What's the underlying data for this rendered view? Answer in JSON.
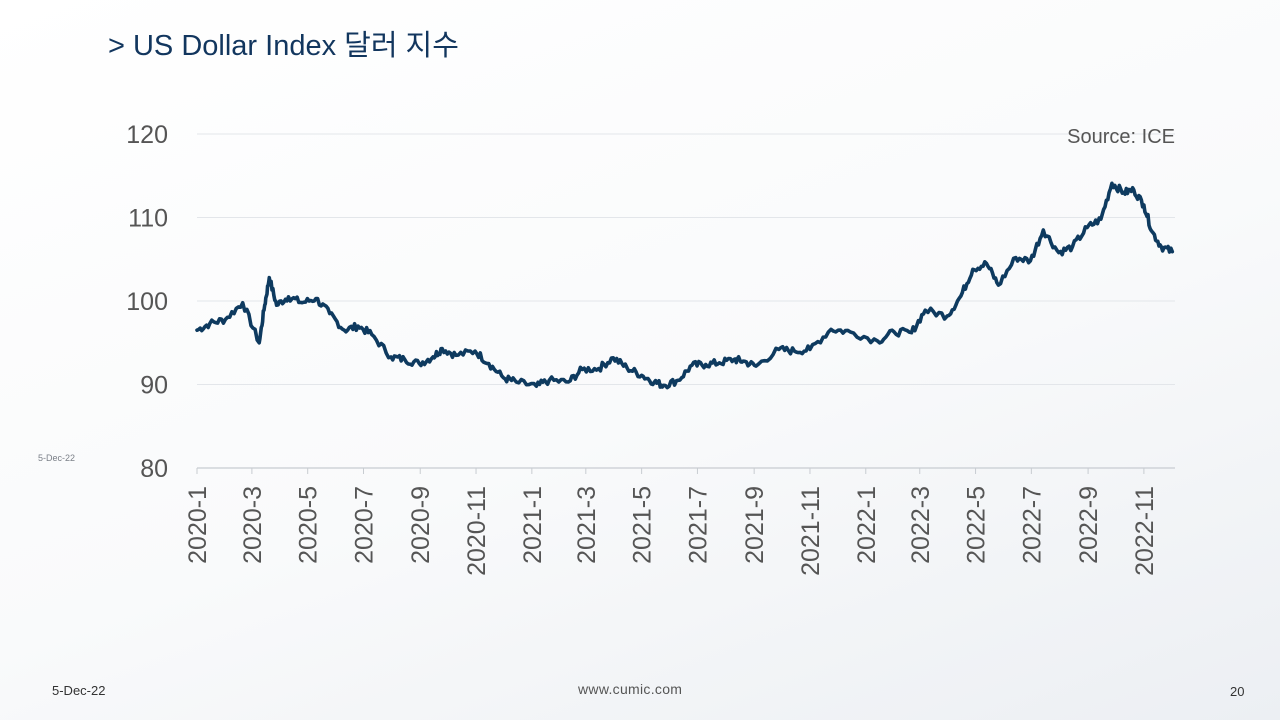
{
  "slide": {
    "title": "> US Dollar Index 달러 지수",
    "side_date": "5-Dec-22",
    "footer": {
      "date": "5-Dec-22",
      "url": "www.cumic.com",
      "page": "20"
    }
  },
  "colors": {
    "line": "#0e3a5f",
    "title": "#12365e",
    "grid": "#e3e6ea",
    "text": "#555555"
  },
  "chart_data": {
    "type": "line",
    "title": "",
    "source_note": "Source: ICE",
    "xlabel": "",
    "ylabel": "",
    "ylim": [
      80,
      120
    ],
    "yticks": [
      "80",
      "90",
      "100",
      "110",
      "120"
    ],
    "xticks": [
      "2020-1",
      "2020-3",
      "2020-5",
      "2020-7",
      "2020-9",
      "2020-11",
      "2021-1",
      "2021-3",
      "2021-5",
      "2021-7",
      "2021-9",
      "2021-11",
      "2022-1",
      "2022-3",
      "2022-5",
      "2022-7",
      "2022-9",
      "2022-11"
    ],
    "grid": true,
    "legend": "none",
    "series": [
      {
        "x": [
          "2020-01-01",
          "2020-01-15",
          "2020-02-01",
          "2020-02-20",
          "2020-03-09",
          "2020-03-15",
          "2020-03-20",
          "2020-03-28",
          "2020-04-10",
          "2020-04-25",
          "2020-05-10",
          "2020-05-25",
          "2020-06-10",
          "2020-06-25",
          "2020-07-10",
          "2020-07-31",
          "2020-08-15",
          "2020-08-31",
          "2020-09-15",
          "2020-09-25",
          "2020-10-10",
          "2020-10-31",
          "2020-11-15",
          "2020-12-01",
          "2020-12-15",
          "2021-01-06",
          "2021-01-20",
          "2021-02-10",
          "2021-02-25",
          "2021-03-15",
          "2021-03-31",
          "2021-04-15",
          "2021-05-01",
          "2021-05-15",
          "2021-05-25",
          "2021-06-10",
          "2021-06-25",
          "2021-07-10",
          "2021-07-25",
          "2021-08-10",
          "2021-08-20",
          "2021-09-03",
          "2021-09-28",
          "2021-10-15",
          "2021-11-01",
          "2021-11-24",
          "2021-12-15",
          "2022-01-14",
          "2022-02-01",
          "2022-02-20",
          "2022-03-07",
          "2022-03-31",
          "2022-04-15",
          "2022-04-28",
          "2022-05-13",
          "2022-05-26",
          "2022-06-14",
          "2022-06-30",
          "2022-07-14",
          "2022-07-31",
          "2022-08-15",
          "2022-08-31",
          "2022-09-15",
          "2022-09-27",
          "2022-10-10",
          "2022-10-21",
          "2022-11-01",
          "2022-11-10",
          "2022-11-20",
          "2022-12-02"
        ],
        "values": [
          96.5,
          97.3,
          97.8,
          99.8,
          95.0,
          99.5,
          102.8,
          99.5,
          100.5,
          99.8,
          100.3,
          98.5,
          96.5,
          97.0,
          96.0,
          93.3,
          93.0,
          92.5,
          93.3,
          94.3,
          93.5,
          94.0,
          92.5,
          90.8,
          90.3,
          89.8,
          90.5,
          90.3,
          91.8,
          91.9,
          93.2,
          92.0,
          91.1,
          90.3,
          89.9,
          90.5,
          92.3,
          92.4,
          92.6,
          93.0,
          92.8,
          92.2,
          94.2,
          94.0,
          94.2,
          96.6,
          96.3,
          95.2,
          96.3,
          96.2,
          98.9,
          98.2,
          100.6,
          103.8,
          104.5,
          101.9,
          105.2,
          104.8,
          108.5,
          105.8,
          106.5,
          108.8,
          109.8,
          114.1,
          113.0,
          113.3,
          111.5,
          108.3,
          106.5,
          105.9
        ]
      }
    ]
  }
}
